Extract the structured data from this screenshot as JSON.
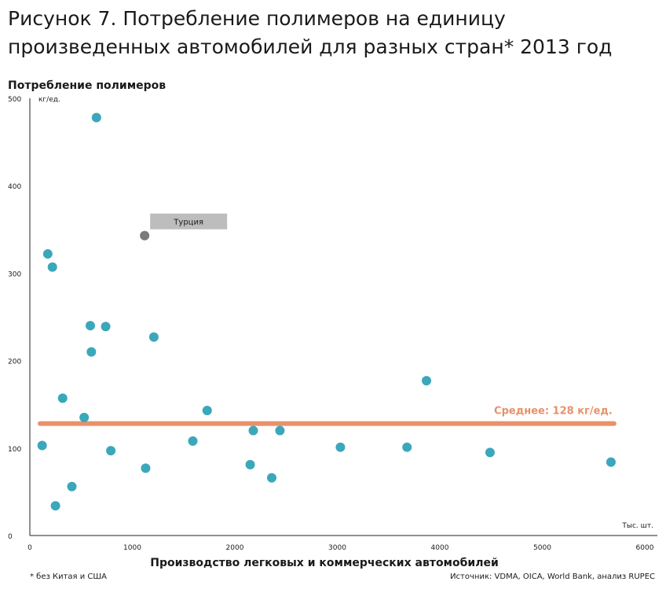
{
  "title": "Рисунок 7. Потребление полимеров на единицу произведенных автомобилей для разных стран* 2013 год",
  "footnote": "* без Китая и США",
  "source": "Источник: VDMA, OICA, World Bank, анализ RUPEC",
  "colors": {
    "points": "#3ba7bb",
    "highlight": "#7a7a7a",
    "average": "#e8916a",
    "label_box": "#bdbdbd"
  },
  "chart_data": {
    "type": "scatter",
    "title": "Рисунок 7. Потребление полимеров на единицу произведенных автомобилей для разных стран* 2013 год",
    "ylabel": "Потребление полимеров",
    "yunit": "кг/ед.",
    "xlabel": "Производство легковых и коммерческих автомобилей",
    "xunit": "Тыс. шт.",
    "xlim": [
      0,
      6000
    ],
    "ylim": [
      0,
      500
    ],
    "xticks": [
      0,
      1000,
      2000,
      3000,
      4000,
      5000,
      6000
    ],
    "yticks": [
      0,
      100,
      200,
      300,
      400,
      500
    ],
    "grid": false,
    "points": [
      {
        "x": 650,
        "y": 478
      },
      {
        "x": 175,
        "y": 322
      },
      {
        "x": 220,
        "y": 307
      },
      {
        "x": 590,
        "y": 240
      },
      {
        "x": 740,
        "y": 239
      },
      {
        "x": 600,
        "y": 210
      },
      {
        "x": 1210,
        "y": 227
      },
      {
        "x": 320,
        "y": 157
      },
      {
        "x": 530,
        "y": 135
      },
      {
        "x": 1730,
        "y": 143
      },
      {
        "x": 3870,
        "y": 177
      },
      {
        "x": 120,
        "y": 103
      },
      {
        "x": 790,
        "y": 97
      },
      {
        "x": 1590,
        "y": 108
      },
      {
        "x": 2180,
        "y": 120
      },
      {
        "x": 2440,
        "y": 120
      },
      {
        "x": 3030,
        "y": 101
      },
      {
        "x": 3680,
        "y": 101
      },
      {
        "x": 4490,
        "y": 95
      },
      {
        "x": 5670,
        "y": 84
      },
      {
        "x": 1130,
        "y": 77
      },
      {
        "x": 2150,
        "y": 81
      },
      {
        "x": 2360,
        "y": 66
      },
      {
        "x": 410,
        "y": 56
      },
      {
        "x": 250,
        "y": 34
      }
    ],
    "highlight": {
      "x": 1120,
      "y": 343,
      "label": "Турция"
    },
    "average": {
      "value": 128,
      "x_start": 100,
      "x_end": 5700,
      "label": "Среднее: 128 кг/ед."
    }
  }
}
